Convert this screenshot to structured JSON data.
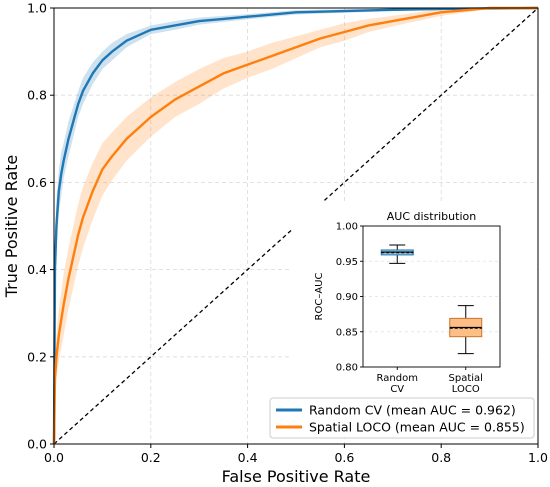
{
  "chart_data": [
    {
      "type": "line",
      "xlabel": "False Positive Rate",
      "ylabel": "True Positive Rate",
      "xlim": [
        0.0,
        1.0
      ],
      "ylim": [
        0.0,
        1.0
      ],
      "xticks": [
        "0.0",
        "0.2",
        "0.4",
        "0.6",
        "0.8",
        "1.0"
      ],
      "yticks": [
        "0.0",
        "0.2",
        "0.4",
        "0.6",
        "0.8",
        "1.0"
      ],
      "grid": true,
      "legend_position": "bottom-right",
      "diagonal_reference": true,
      "series": [
        {
          "name": "Random CV (mean AUC = 0.962)",
          "color": "#1f77b4",
          "x": [
            0,
            0.002,
            0.005,
            0.01,
            0.015,
            0.02,
            0.03,
            0.04,
            0.05,
            0.06,
            0.08,
            0.1,
            0.12,
            0.15,
            0.2,
            0.25,
            0.3,
            0.35,
            0.4,
            0.5,
            0.6,
            0.7,
            0.8,
            0.9,
            1.0
          ],
          "y": [
            0,
            0.4,
            0.5,
            0.58,
            0.62,
            0.65,
            0.7,
            0.74,
            0.78,
            0.81,
            0.85,
            0.88,
            0.9,
            0.925,
            0.95,
            0.96,
            0.97,
            0.975,
            0.98,
            0.99,
            0.993,
            0.996,
            0.998,
            0.999,
            1.0
          ],
          "band": [
            0,
            0.06,
            0.06,
            0.05,
            0.05,
            0.04,
            0.04,
            0.035,
            0.03,
            0.03,
            0.025,
            0.02,
            0.02,
            0.015,
            0.01,
            0.01,
            0.008,
            0.007,
            0.006,
            0.005,
            0.004,
            0.003,
            0.002,
            0.001,
            0
          ]
        },
        {
          "name": "Spatial LOCO (mean AUC = 0.855)",
          "color": "#ff7f0e",
          "x": [
            0,
            0.002,
            0.005,
            0.01,
            0.02,
            0.03,
            0.04,
            0.05,
            0.06,
            0.08,
            0.1,
            0.12,
            0.15,
            0.2,
            0.25,
            0.3,
            0.35,
            0.4,
            0.45,
            0.5,
            0.55,
            0.6,
            0.65,
            0.7,
            0.75,
            0.8,
            0.85,
            0.9,
            1.0
          ],
          "y": [
            0,
            0.15,
            0.2,
            0.25,
            0.32,
            0.38,
            0.43,
            0.48,
            0.52,
            0.58,
            0.63,
            0.66,
            0.7,
            0.75,
            0.79,
            0.82,
            0.85,
            0.87,
            0.89,
            0.91,
            0.93,
            0.945,
            0.96,
            0.97,
            0.98,
            0.99,
            0.995,
            1.0,
            1.0
          ],
          "band": [
            0,
            0.05,
            0.05,
            0.06,
            0.07,
            0.07,
            0.07,
            0.07,
            0.07,
            0.065,
            0.06,
            0.055,
            0.05,
            0.045,
            0.04,
            0.04,
            0.035,
            0.03,
            0.03,
            0.025,
            0.02,
            0.02,
            0.015,
            0.012,
            0.01,
            0.008,
            0.005,
            0.002,
            0
          ]
        }
      ]
    },
    {
      "type": "boxplot",
      "title": "AUC distribution",
      "ylabel": "ROC–AUC",
      "ylim": [
        0.8,
        1.0
      ],
      "yticks": [
        "0.80",
        "0.85",
        "0.90",
        "0.95",
        "1.00"
      ],
      "categories": [
        "Random\nCV",
        "Spatial\nLOCO"
      ],
      "boxes": [
        {
          "category": "Random\nCV",
          "whisker_low": 0.947,
          "q1": 0.959,
          "median": 0.963,
          "mean": 0.962,
          "q3": 0.966,
          "whisker_high": 0.973,
          "color": "#9ecae1",
          "edge": "#1f77b4"
        },
        {
          "category": "Spatial\nLOCO",
          "whisker_low": 0.819,
          "q1": 0.843,
          "median": 0.856,
          "mean": 0.855,
          "q3": 0.869,
          "whisker_high": 0.887,
          "color": "#fdbf86",
          "edge": "#c8742a"
        }
      ]
    }
  ]
}
